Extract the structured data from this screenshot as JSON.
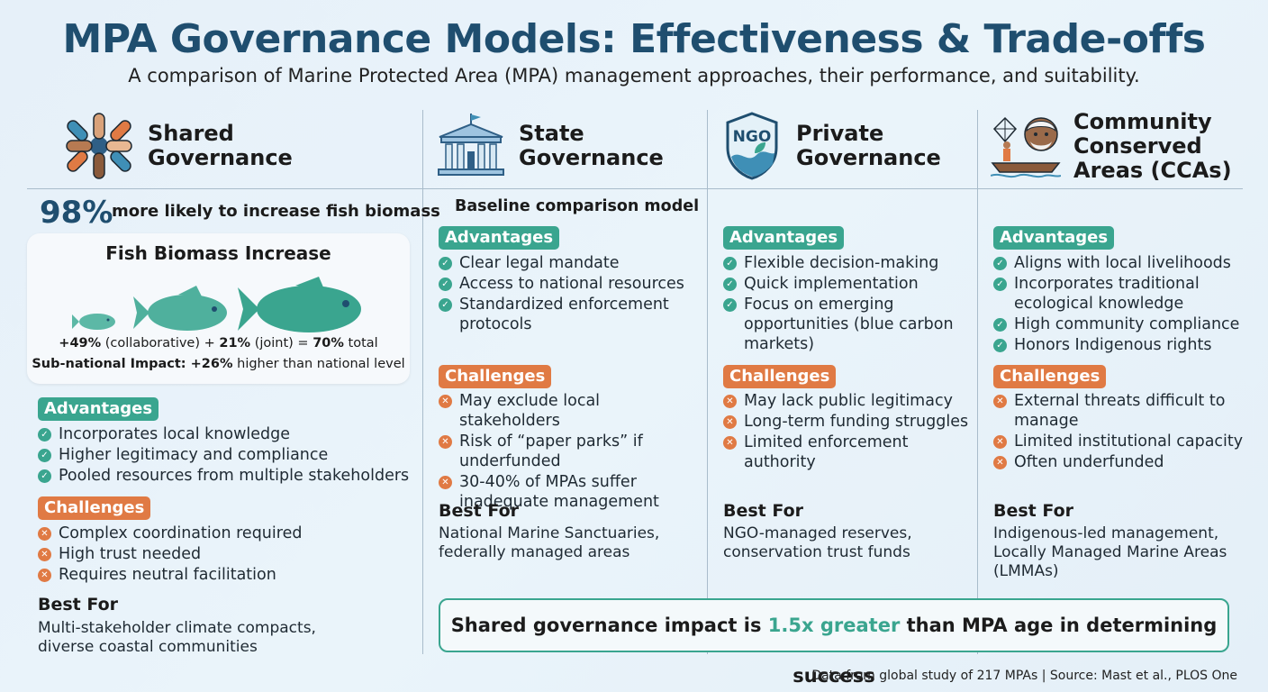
{
  "title": "MPA Governance Models: Effectiveness & Trade-offs",
  "subtitle": "A comparison of Marine Protected Area (MPA) management approaches, their performance, and suitability.",
  "colors": {
    "accent_teal": "#3aa58f",
    "accent_orange": "#e07a44",
    "title_blue": "#1f4e6f"
  },
  "columns": [
    {
      "title": "Shared Governance",
      "icon": "joined-hands-icon",
      "stat_value": "98%",
      "stat_text": "more likely to increase fish biomass",
      "biomass": {
        "title": "Fish Biomass Increase",
        "line1_a": "+49%",
        "line1_b": " (collaborative) + ",
        "line1_c": "21%",
        "line1_d": " (joint) = ",
        "line1_e": "70%",
        "line1_f": " total",
        "line2_a": "Sub-national Impact: ",
        "line2_b": "+26%",
        "line2_c": " higher than national level"
      },
      "advantages_label": "Advantages",
      "advantages": [
        "Incorporates local knowledge",
        "Higher legitimacy and compliance",
        "Pooled resources from multiple stakeholders"
      ],
      "challenges_label": "Challenges",
      "challenges": [
        "Complex coordination required",
        "High trust needed",
        "Requires neutral facilitation"
      ],
      "best_for_label": "Best For",
      "best_for": "Multi-stakeholder climate compacts, diverse coastal communities"
    },
    {
      "title": "State Governance",
      "icon": "government-building-icon",
      "baseline": "Baseline comparison model",
      "advantages_label": "Advantages",
      "advantages": [
        "Clear legal mandate",
        "Access to national resources",
        "Standardized enforcement protocols"
      ],
      "challenges_label": "Challenges",
      "challenges": [
        "May exclude local stakeholders",
        "Risk of “paper parks” if underfunded",
        "30-40% of MPAs suffer inadequate management"
      ],
      "best_for_label": "Best For",
      "best_for": "National Marine Sanctuaries, federally managed areas"
    },
    {
      "title": "Private Governance",
      "icon": "ngo-shield-icon",
      "icon_text": "NGO",
      "advantages_label": "Advantages",
      "advantages": [
        "Flexible decision-making",
        "Quick implementation",
        "Focus on emerging opportunities (blue carbon markets)"
      ],
      "challenges_label": "Challenges",
      "challenges": [
        "May lack public legitimacy",
        "Long-term funding struggles",
        "Limited enforcement authority"
      ],
      "best_for_label": "Best For",
      "best_for": "NGO-managed reserves, conservation trust funds"
    },
    {
      "title": "Community Conserved Areas (CCAs)",
      "icon": "community-fisher-icon",
      "advantages_label": "Advantages",
      "advantages": [
        "Aligns with local livelihoods",
        "Incorporates traditional ecological knowledge",
        "High community compliance",
        "Honors Indigenous rights"
      ],
      "challenges_label": "Challenges",
      "challenges": [
        "External threats difficult to manage",
        "Limited institutional capacity",
        "Often underfunded"
      ],
      "best_for_label": "Best For",
      "best_for": "Indigenous-led management, Locally Managed Marine Areas (LMMAs)"
    }
  ],
  "callout": {
    "pre": "Shared governance impact is ",
    "highlight": "1.5x greater",
    "post": " than MPA age in determining success"
  },
  "source": "Data from global study of 217 MPAs | Source: Mast et al., PLOS One"
}
